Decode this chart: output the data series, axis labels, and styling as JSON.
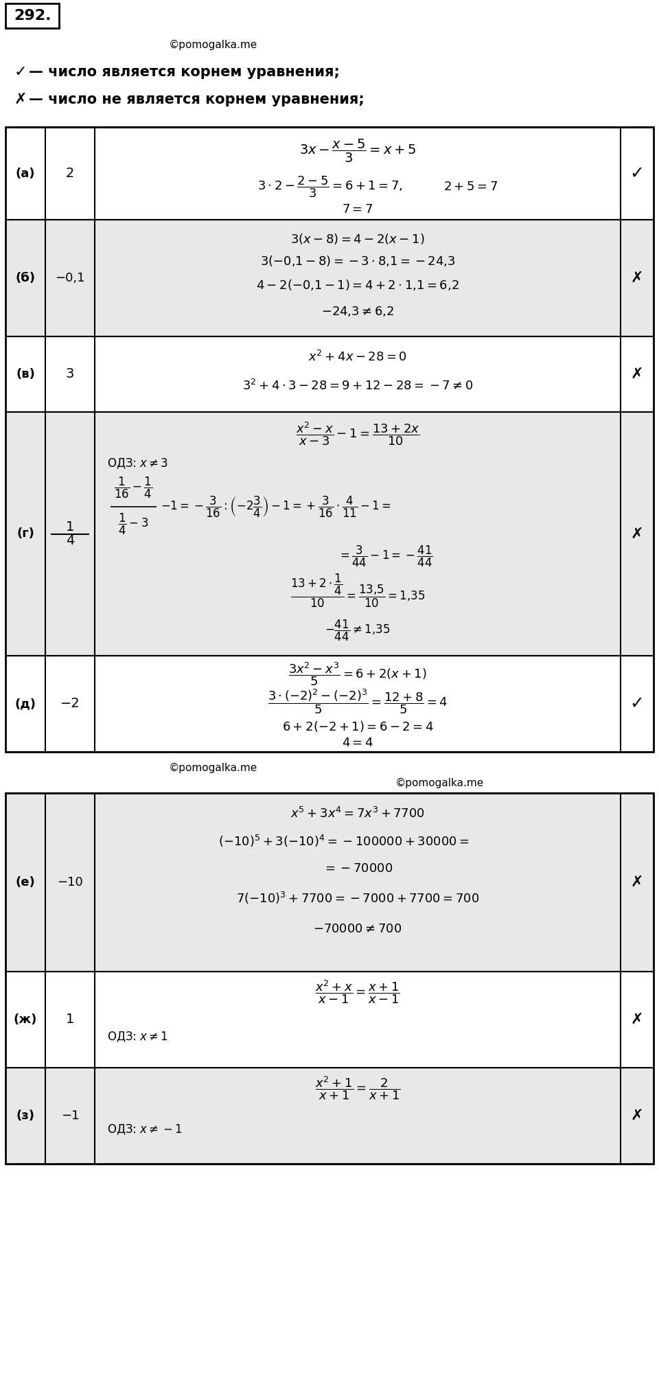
{
  "bg_color": "#ffffff",
  "row_bg_gray": "#e8e8e8",
  "border_color": "#000000"
}
